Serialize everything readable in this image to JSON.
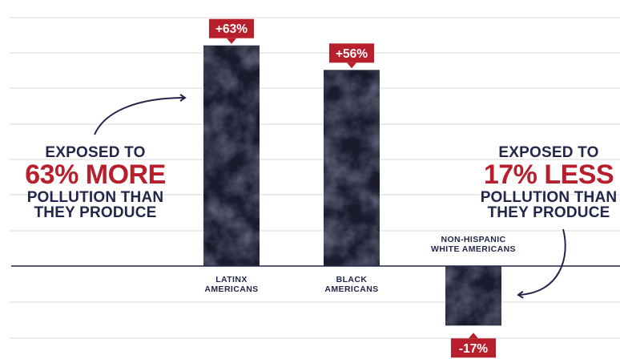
{
  "colors": {
    "accent_red": "#b81f2d",
    "navy": "#23264a",
    "bar_dark": "#1a1c2e",
    "gridline": "#d9d9d9",
    "baseline": "#23264a"
  },
  "annotations": {
    "left": {
      "line1": "EXPOSED TO",
      "highlight": "63% MORE",
      "line3": "POLLUTION THAN",
      "line4": "THEY PRODUCE"
    },
    "right": {
      "line1": "EXPOSED TO",
      "highlight": "17% LESS",
      "line3": "POLLUTION THAN",
      "line4": "THEY PRODUCE"
    }
  },
  "chart_data": {
    "type": "bar",
    "title": "",
    "xlabel": "",
    "ylabel": "",
    "categories": [
      [
        "LATINX",
        "AMERICANS"
      ],
      [
        "BLACK",
        "AMERICANS"
      ],
      [
        "NON-HISPANIC",
        "WHITE AMERICANS"
      ]
    ],
    "values": [
      63,
      56,
      -17
    ],
    "value_labels": [
      "+63%",
      "+56%",
      "-17%"
    ],
    "ylim": [
      -20,
      65
    ],
    "grid": true
  }
}
